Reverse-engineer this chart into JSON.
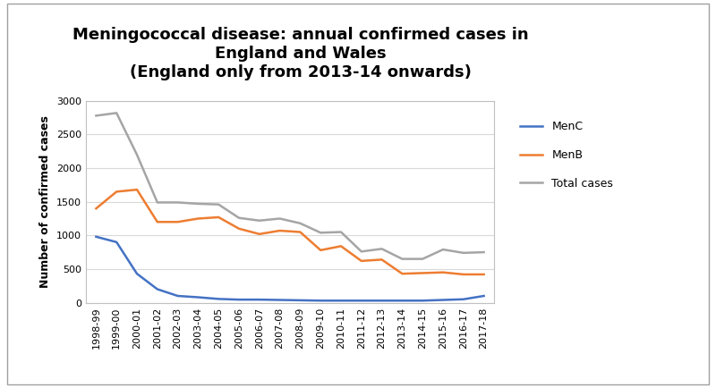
{
  "title": "Meningococcal disease: annual confirmed cases in\nEngland and Wales\n(England only from 2013-14 onwards)",
  "ylabel": "Number of confirmed cases",
  "years": [
    "1998-99",
    "1999-00",
    "2000-01",
    "2001-02",
    "2002-03",
    "2003-04",
    "2004-05",
    "2005-06",
    "2006-07",
    "2007-08",
    "2008-09",
    "2009-10",
    "2010-11",
    "2011-12",
    "2012-13",
    "2013-14",
    "2014-15",
    "2015-16",
    "2016-17",
    "2017-18"
  ],
  "MenC": [
    980,
    900,
    430,
    200,
    100,
    80,
    55,
    45,
    45,
    40,
    35,
    30,
    30,
    30,
    30,
    30,
    30,
    40,
    50,
    100
  ],
  "MenB": [
    1400,
    1650,
    1680,
    1200,
    1200,
    1250,
    1270,
    1100,
    1020,
    1070,
    1050,
    780,
    840,
    620,
    640,
    430,
    440,
    450,
    420,
    420
  ],
  "Total": [
    2780,
    2820,
    2200,
    1490,
    1490,
    1470,
    1460,
    1260,
    1220,
    1250,
    1180,
    1040,
    1050,
    760,
    800,
    650,
    650,
    790,
    740,
    750
  ],
  "MenC_color": "#4472c4",
  "MenB_color": "#ed7d31",
  "Total_color": "#a5a5a5",
  "ylim": [
    0,
    3000
  ],
  "yticks": [
    0,
    500,
    1000,
    1500,
    2000,
    2500,
    3000
  ],
  "bg_color": "#ffffff",
  "grid_color": "#d9d9d9",
  "title_fontsize": 13,
  "label_fontsize": 9,
  "tick_fontsize": 8,
  "legend_fontsize": 9,
  "linewidth": 1.8
}
